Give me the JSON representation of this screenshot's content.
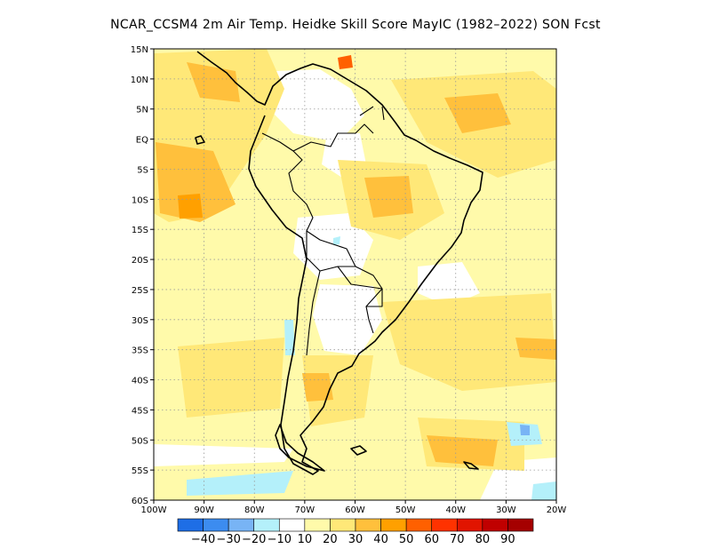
{
  "title": "NCAR_CCSM4  2m Air Temp. Heidke Skill Score MayIC (1982–2022) SON Fcst",
  "map": {
    "lat_ticks": [
      "15N",
      "10N",
      "5N",
      "EQ",
      "5S",
      "10S",
      "15S",
      "20S",
      "25S",
      "30S",
      "35S",
      "40S",
      "45S",
      "50S",
      "55S",
      "60S"
    ],
    "lon_ticks": [
      "100W",
      "90W",
      "80W",
      "70W",
      "60W",
      "50W",
      "40W",
      "30W",
      "20W"
    ]
  },
  "colorbar": {
    "colors": [
      "#1e6ee6",
      "#3c8cf0",
      "#78b4f5",
      "#b4f0fa",
      "#ffffff",
      "#fffaaa",
      "#ffe878",
      "#ffc03c",
      "#ffa000",
      "#ff6000",
      "#ff3200",
      "#e11400",
      "#c00000",
      "#a50000"
    ],
    "labels": [
      "−40",
      "−30",
      "−20",
      "−10",
      "10",
      "20",
      "30",
      "40",
      "50",
      "60",
      "70",
      "80",
      "90"
    ]
  }
}
